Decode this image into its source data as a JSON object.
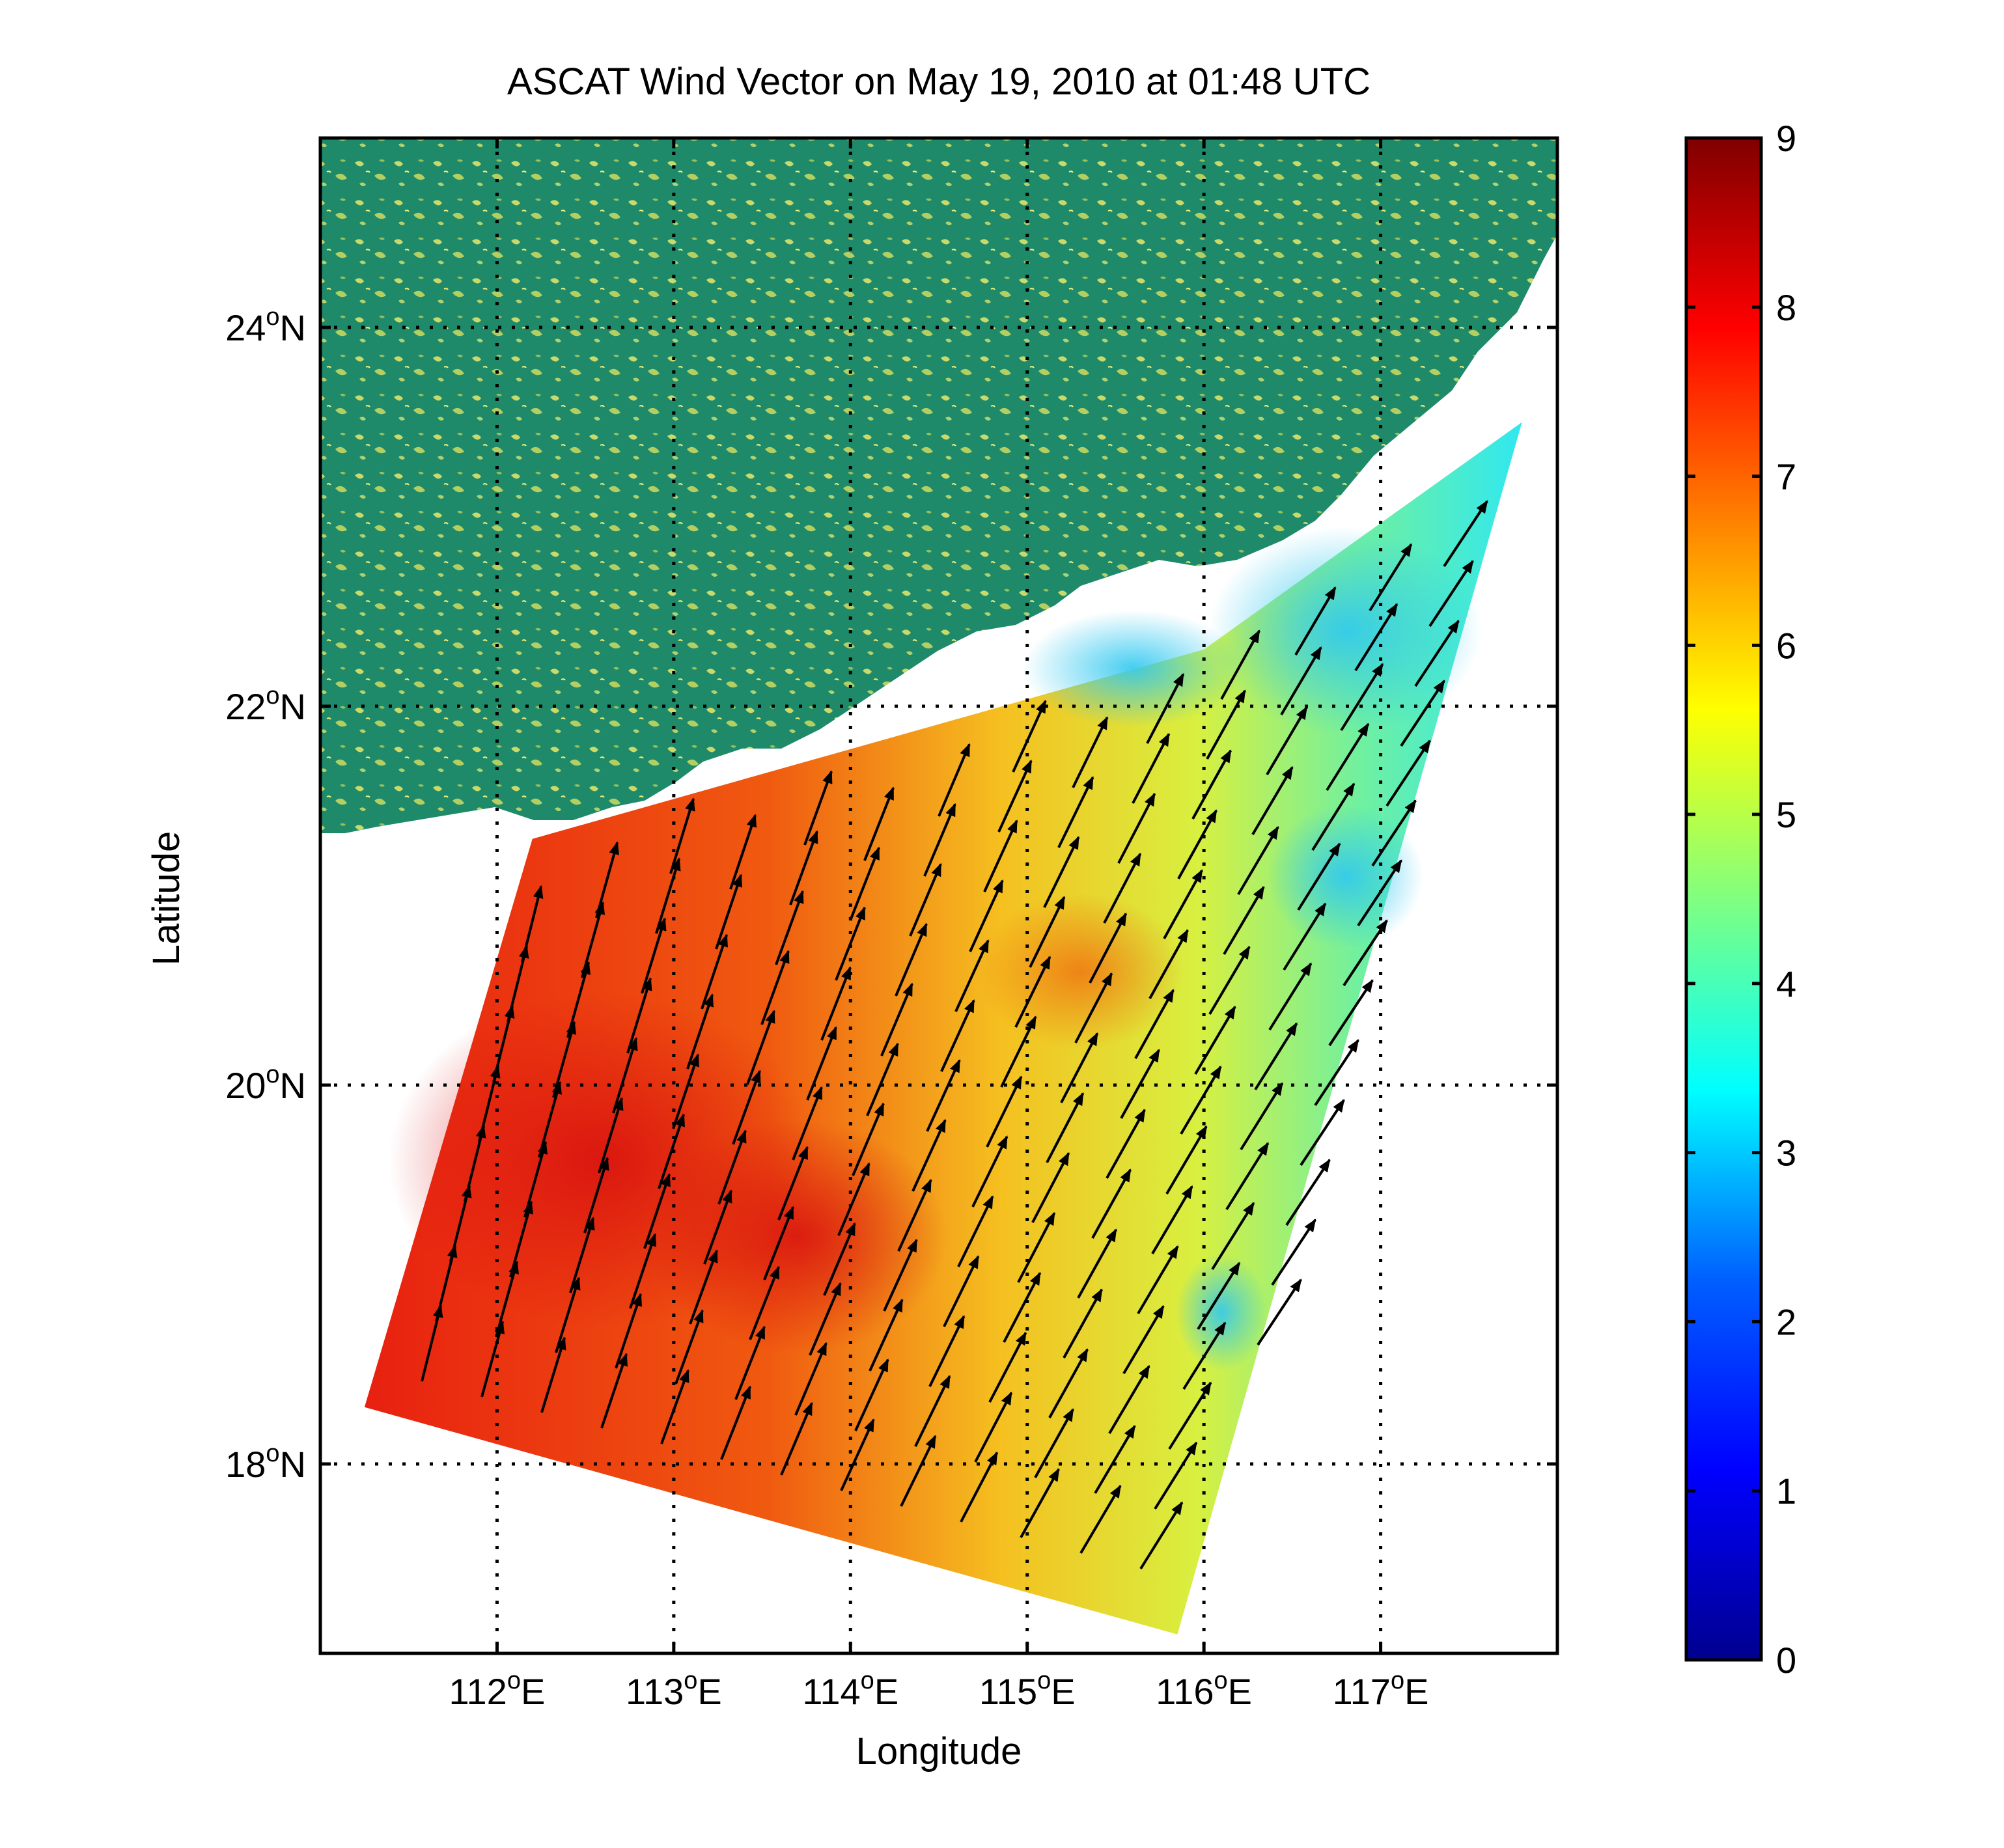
{
  "figure": {
    "title": "ASCAT Wind Vector on May 19, 2010 at 01:48 UTC",
    "xlabel": "Longitude",
    "ylabel": "Latitude"
  },
  "map": {
    "lon_range": [
      111,
      118
    ],
    "lat_range": [
      17,
      25
    ],
    "x_ticks": [
      {
        "value": 112,
        "deg": "112",
        "sup": "o",
        "hem": "E"
      },
      {
        "value": 113,
        "deg": "113",
        "sup": "o",
        "hem": "E"
      },
      {
        "value": 114,
        "deg": "114",
        "sup": "o",
        "hem": "E"
      },
      {
        "value": 115,
        "deg": "115",
        "sup": "o",
        "hem": "E"
      },
      {
        "value": 116,
        "deg": "116",
        "sup": "o",
        "hem": "E"
      },
      {
        "value": 117,
        "deg": "117",
        "sup": "o",
        "hem": "E"
      }
    ],
    "y_ticks": [
      {
        "value": 18,
        "deg": "18",
        "sup": "o",
        "hem": "N"
      },
      {
        "value": 20,
        "deg": "20",
        "sup": "o",
        "hem": "N"
      },
      {
        "value": 22,
        "deg": "22",
        "sup": "o",
        "hem": "N"
      },
      {
        "value": 24,
        "deg": "24",
        "sup": "o",
        "hem": "N"
      }
    ],
    "land_color": "#1e8a6a",
    "land_highlight_color": "#e8e86a",
    "swath_corners": [
      [
        111.25,
        18.3
      ],
      [
        115.85,
        17.1
      ],
      [
        117.8,
        23.5
      ],
      [
        116.0,
        22.3
      ],
      [
        112.2,
        21.3
      ]
    ]
  },
  "colorbar": {
    "min": 0,
    "max": 9,
    "ticks": [
      "0",
      "1",
      "2",
      "3",
      "4",
      "5",
      "6",
      "7",
      "8",
      "9"
    ],
    "colormap": [
      "#00008f",
      "#0000ff",
      "#0080ff",
      "#00ffff",
      "#80ff80",
      "#ffff00",
      "#ff8000",
      "#ff0000",
      "#800000"
    ]
  }
}
